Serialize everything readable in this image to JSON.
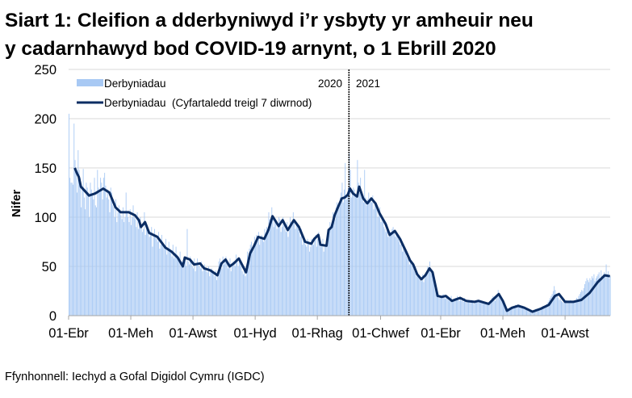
{
  "chart_data": {
    "type": "bar",
    "title_line1": "Siart 1: Cleifion a dderbyniwyd i’r ysbyty yr amheuir neu",
    "title_line2": "y cadarnhawyd bod COVID-19 arnynt, o 1 Ebrill 2020",
    "ylabel": "Nifer",
    "xlabel": "",
    "ylim": [
      0,
      250
    ],
    "yticks": [
      "0",
      "50",
      "100",
      "150",
      "200",
      "250"
    ],
    "xtick_labels": [
      "01-Ebr",
      "01-Meh",
      "01-Awst",
      "01-Hyd",
      "01-Rhag",
      "01-Chwef",
      "01-Ebr",
      "01-Meh",
      "01-Awst"
    ],
    "xtick_dates": [
      "2020-04-01",
      "2020-06-01",
      "2020-08-01",
      "2020-10-01",
      "2020-12-01",
      "2021-02-01",
      "2021-04-01",
      "2021-06-01",
      "2021-08-01"
    ],
    "grid": true,
    "legend_position": "top-left",
    "year_divider": {
      "date": "2021-01-01",
      "left_label": "2020",
      "right_label": "2021"
    },
    "source": "Ffynhonnell: Iechyd a Gofal Digidol Cymru (IGDC)",
    "colors": {
      "bars": "#a8c9f4",
      "line": "#0b2d63",
      "grid": "#d9d9d9"
    },
    "series": [
      {
        "name": "Derbyniadau",
        "type": "bar",
        "start_date": "2020-04-01",
        "daily_values": [
          205,
          140,
          135,
          135,
          133,
          195,
          158,
          150,
          125,
          168,
          148,
          140,
          110,
          130,
          149,
          120,
          108,
          135,
          130,
          125,
          100,
          135,
          128,
          122,
          118,
          140,
          112,
          110,
          148,
          130,
          125,
          140,
          135,
          118,
          140,
          145,
          132,
          120,
          128,
          118,
          105,
          130,
          125,
          112,
          110,
          100,
          118,
          95,
          105,
          112,
          108,
          102,
          98,
          110,
          95,
          100,
          125,
          105,
          100,
          95,
          108,
          92,
          100,
          112,
          100,
          98,
          90,
          105,
          88,
          95,
          100,
          92,
          85,
          88,
          105,
          82,
          90,
          92,
          85,
          80,
          85,
          90,
          70,
          82,
          88,
          80,
          78,
          75,
          85,
          68,
          72,
          82,
          75,
          70,
          68,
          78,
          62,
          68,
          75,
          68,
          66,
          60,
          72,
          58,
          62,
          70,
          62,
          58,
          55,
          65,
          50,
          55,
          55,
          60,
          58,
          50,
          88,
          55,
          52,
          60,
          55,
          50,
          48,
          58,
          45,
          52,
          58,
          52,
          50,
          48,
          55,
          45,
          50,
          52,
          48,
          45,
          44,
          50,
          40,
          46,
          48,
          45,
          42,
          40,
          46,
          36,
          42,
          55,
          58,
          50,
          48,
          60,
          52,
          55,
          60,
          55,
          48,
          52,
          58,
          45,
          50,
          55,
          52,
          50,
          62,
          58,
          50,
          55,
          55,
          50,
          45,
          42,
          50,
          40,
          45,
          65,
          60,
          68,
          72,
          75,
          65,
          70,
          80,
          75,
          82,
          78,
          85,
          72,
          80,
          82,
          78,
          75,
          88,
          80,
          90,
          85,
          105,
          98,
          95,
          110,
          102,
          90,
          95,
          95,
          88,
          92,
          100,
          98,
          85,
          90,
          100,
          92,
          88,
          85,
          95,
          80,
          88,
          100,
          95,
          92,
          105,
          98,
          88,
          95,
          92,
          88,
          85,
          80,
          88,
          72,
          78,
          75,
          72,
          70,
          78,
          74,
          65,
          70,
          78,
          75,
          72,
          80,
          82,
          70,
          78,
          85,
          75,
          70,
          72,
          78,
          65,
          70,
          72,
          70,
          88,
          85,
          95,
          90,
          92,
          105,
          100,
          98,
          110,
          115,
          108,
          112,
          120,
          125,
          135,
          115,
          128,
          155,
          118,
          125,
          130,
          165,
          148,
          120,
          125,
          130,
          128,
          122,
          120,
          158,
          135,
          125,
          140,
          125,
          118,
          115,
          148,
          120,
          112,
          118,
          125,
          118,
          120,
          115,
          122,
          108,
          115,
          112,
          108,
          100,
          105,
          110,
          95,
          100,
          95,
          90,
          88,
          85,
          92,
          80,
          85,
          85,
          82,
          88,
          90,
          85,
          80,
          82,
          80,
          78,
          75,
          72,
          78,
          65,
          70,
          68,
          65,
          60,
          58,
          62,
          52,
          55,
          55,
          52,
          48,
          45,
          50,
          40,
          42,
          40,
          38,
          36,
          35,
          42,
          34,
          38,
          42,
          45,
          50,
          48,
          55,
          44,
          46,
          44,
          40,
          30,
          25,
          22,
          20,
          18,
          20,
          19,
          18,
          22,
          20,
          17,
          19,
          18,
          16,
          15,
          17,
          20,
          14,
          15,
          16,
          18,
          17,
          20,
          18,
          15,
          17,
          15,
          16,
          14,
          18,
          16,
          13,
          15,
          14,
          15,
          13,
          16,
          14,
          12,
          14,
          15,
          14,
          16,
          15,
          13,
          14,
          15,
          13,
          12,
          14,
          12,
          11,
          13,
          12,
          14,
          16,
          18,
          20,
          17,
          15,
          18,
          22,
          26,
          20,
          18,
          16,
          14,
          15,
          10,
          8,
          6,
          5,
          7,
          6,
          8,
          8,
          9,
          10,
          8,
          11,
          9,
          10,
          10,
          11,
          9,
          8,
          10,
          7,
          8,
          7,
          6,
          5,
          4,
          6,
          5,
          4,
          4,
          5,
          6,
          7,
          6,
          5,
          7,
          8,
          7,
          9,
          10,
          8,
          9,
          11,
          12,
          14,
          16,
          18,
          20,
          22,
          25,
          30,
          26,
          22,
          20,
          18,
          16,
          17,
          15,
          14,
          13,
          15,
          14,
          16,
          13,
          14,
          15,
          16,
          14,
          13,
          15,
          14,
          16,
          18,
          17,
          20,
          22,
          24,
          26,
          25,
          28,
          32,
          35,
          38,
          36,
          34,
          38,
          36,
          40,
          38,
          42,
          35,
          38,
          40,
          42,
          44,
          38,
          46,
          40,
          42,
          44,
          40,
          52,
          42,
          45,
          38,
          40
        ]
      },
      {
        "name": "Derbyniadau  (Cyfartaledd treigl 7 diwrnod)",
        "type": "line",
        "points": [
          [
            "2020-04-07",
            150
          ],
          [
            "2020-04-09",
            145
          ],
          [
            "2020-04-11",
            141
          ],
          [
            "2020-04-13",
            131
          ],
          [
            "2020-04-21",
            122
          ],
          [
            "2020-04-27",
            124
          ],
          [
            "2020-05-05",
            129
          ],
          [
            "2020-05-11",
            125
          ],
          [
            "2020-05-17",
            110
          ],
          [
            "2020-05-22",
            105
          ],
          [
            "2020-05-30",
            105
          ],
          [
            "2020-06-05",
            102
          ],
          [
            "2020-06-09",
            97
          ],
          [
            "2020-06-11",
            90
          ],
          [
            "2020-06-15",
            95
          ],
          [
            "2020-06-19",
            84
          ],
          [
            "2020-06-27",
            80
          ],
          [
            "2020-07-05",
            69
          ],
          [
            "2020-07-11",
            65
          ],
          [
            "2020-07-17",
            59
          ],
          [
            "2020-07-22",
            50
          ],
          [
            "2020-07-24",
            59
          ],
          [
            "2020-07-29",
            57
          ],
          [
            "2020-08-02",
            52
          ],
          [
            "2020-08-08",
            53
          ],
          [
            "2020-08-12",
            48
          ],
          [
            "2020-08-18",
            46
          ],
          [
            "2020-08-25",
            41
          ],
          [
            "2020-08-29",
            53
          ],
          [
            "2020-09-02",
            57
          ],
          [
            "2020-09-06",
            50
          ],
          [
            "2020-09-10",
            53
          ],
          [
            "2020-09-15",
            58
          ],
          [
            "2020-09-18",
            52
          ],
          [
            "2020-09-22",
            44
          ],
          [
            "2020-09-26",
            63
          ],
          [
            "2020-09-30",
            71
          ],
          [
            "2020-10-04",
            80
          ],
          [
            "2020-10-10",
            78
          ],
          [
            "2020-10-14",
            87
          ],
          [
            "2020-10-18",
            101
          ],
          [
            "2020-10-24",
            91
          ],
          [
            "2020-10-28",
            97
          ],
          [
            "2020-11-02",
            87
          ],
          [
            "2020-11-08",
            97
          ],
          [
            "2020-11-13",
            90
          ],
          [
            "2020-11-19",
            75
          ],
          [
            "2020-11-25",
            73
          ],
          [
            "2020-11-28",
            78
          ],
          [
            "2020-12-02",
            82
          ],
          [
            "2020-12-04",
            72
          ],
          [
            "2020-12-10",
            71
          ],
          [
            "2020-12-12",
            87
          ],
          [
            "2020-12-15",
            90
          ],
          [
            "2020-12-18",
            102
          ],
          [
            "2020-12-22",
            112
          ],
          [
            "2020-12-25",
            119
          ],
          [
            "2020-12-28",
            120
          ],
          [
            "2020-12-31",
            123
          ],
          [
            "2021-01-02",
            129
          ],
          [
            "2021-01-05",
            124
          ],
          [
            "2021-01-09",
            121
          ],
          [
            "2021-01-11",
            131
          ],
          [
            "2021-01-15",
            119
          ],
          [
            "2021-01-19",
            114
          ],
          [
            "2021-01-23",
            119
          ],
          [
            "2021-01-27",
            114
          ],
          [
            "2021-01-31",
            104
          ],
          [
            "2021-02-06",
            93
          ],
          [
            "2021-02-10",
            82
          ],
          [
            "2021-02-15",
            86
          ],
          [
            "2021-02-20",
            78
          ],
          [
            "2021-02-26",
            65
          ],
          [
            "2021-03-02",
            56
          ],
          [
            "2021-03-05",
            52
          ],
          [
            "2021-03-09",
            42
          ],
          [
            "2021-03-13",
            37
          ],
          [
            "2021-03-17",
            41
          ],
          [
            "2021-03-21",
            48
          ],
          [
            "2021-03-24",
            44
          ],
          [
            "2021-03-29",
            20
          ],
          [
            "2021-04-02",
            19
          ],
          [
            "2021-04-06",
            20
          ],
          [
            "2021-04-12",
            15
          ],
          [
            "2021-04-20",
            18
          ],
          [
            "2021-04-26",
            15
          ],
          [
            "2021-05-04",
            14
          ],
          [
            "2021-05-08",
            15
          ],
          [
            "2021-05-18",
            12
          ],
          [
            "2021-05-24",
            18
          ],
          [
            "2021-05-28",
            22
          ],
          [
            "2021-06-01",
            15
          ],
          [
            "2021-06-05",
            5
          ],
          [
            "2021-06-10",
            8
          ],
          [
            "2021-06-16",
            10
          ],
          [
            "2021-06-22",
            8
          ],
          [
            "2021-06-30",
            4
          ],
          [
            "2021-07-08",
            7
          ],
          [
            "2021-07-16",
            11
          ],
          [
            "2021-07-22",
            20
          ],
          [
            "2021-07-26",
            22
          ],
          [
            "2021-08-01",
            14
          ],
          [
            "2021-08-09",
            14
          ],
          [
            "2021-08-17",
            16
          ],
          [
            "2021-08-25",
            23
          ],
          [
            "2021-09-02",
            34
          ],
          [
            "2021-09-09",
            41
          ],
          [
            "2021-09-14",
            40
          ]
        ]
      }
    ]
  }
}
